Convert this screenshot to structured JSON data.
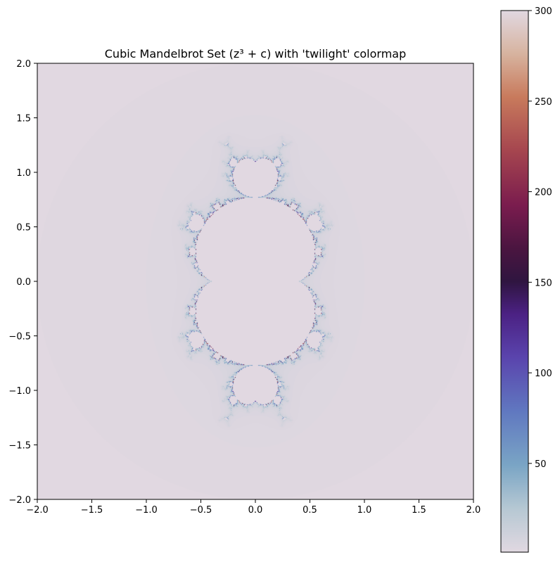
{
  "chart_data": {
    "type": "heatmap",
    "title": "Cubic Mandelbrot Set (z³ + c) with 'twilight' colormap",
    "xlabel": "",
    "ylabel": "",
    "xlim": [
      -2.0,
      2.0
    ],
    "ylim": [
      -2.0,
      2.0
    ],
    "x_ticks": [
      "−2.0",
      "−1.5",
      "−1.0",
      "−0.5",
      "0.0",
      "0.5",
      "1.0",
      "1.5",
      "2.0"
    ],
    "y_ticks": [
      "2.0",
      "1.5",
      "1.0",
      "0.5",
      "0.0",
      "−0.5",
      "−1.0",
      "−1.5",
      "−2.0"
    ],
    "x_tick_values": [
      -2.0,
      -1.5,
      -1.0,
      -0.5,
      0.0,
      0.5,
      1.0,
      1.5,
      2.0
    ],
    "y_tick_values": [
      2.0,
      1.5,
      1.0,
      0.5,
      0.0,
      -0.5,
      -1.0,
      -1.5,
      -2.0
    ],
    "formula": "z^3 + c",
    "max_iter": 300,
    "colormap": "twilight",
    "background_color": "#e2d9e2",
    "colorbar": {
      "ticks": [
        "50",
        "100",
        "150",
        "200",
        "250",
        "300"
      ],
      "tick_values": [
        50,
        100,
        150,
        200,
        250,
        300
      ],
      "range": [
        1,
        300
      ]
    },
    "grid": false
  }
}
